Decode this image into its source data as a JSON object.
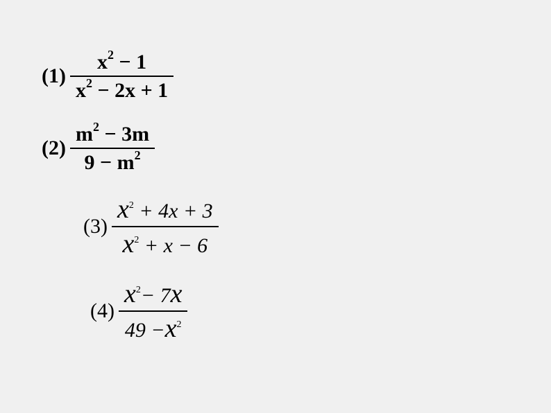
{
  "equations": [
    {
      "label": "(1)",
      "label_style": "bold",
      "numerator_parts": [
        "x",
        "2",
        " − 1"
      ],
      "denominator_parts": [
        "x",
        "2",
        " − 2x + 1"
      ],
      "var_style": "bold",
      "font_size": 30
    },
    {
      "label": "(2)",
      "label_style": "bold",
      "numerator_parts": [
        "m",
        "2",
        " − 3m"
      ],
      "denominator_parts_simple": "9 − m",
      "denominator_sup": "2",
      "var_style": "bold",
      "font_size": 30
    },
    {
      "label": "(3)",
      "label_style": "thin",
      "numerator_x": "x",
      "numerator_sup": "2",
      "numerator_rest": " + 4",
      "numerator_x2": "x",
      "numerator_tail": " + 3",
      "denominator_x": "x",
      "denominator_sup": "2",
      "denominator_rest": " + ",
      "denominator_x2": "x",
      "denominator_tail": " − 6",
      "var_style": "italic-big",
      "font_size": 30
    },
    {
      "label": "(4)",
      "label_style": "thin",
      "numerator_x": "x",
      "numerator_sup": "2",
      "numerator_rest": "− 7",
      "numerator_x2": "x",
      "denominator_pre": "49 −",
      "denominator_x": "x",
      "denominator_sup": "2",
      "var_style": "italic-big",
      "font_size": 30
    }
  ],
  "colors": {
    "background": "#f0f0f0",
    "text": "#000000",
    "line": "#000000"
  }
}
